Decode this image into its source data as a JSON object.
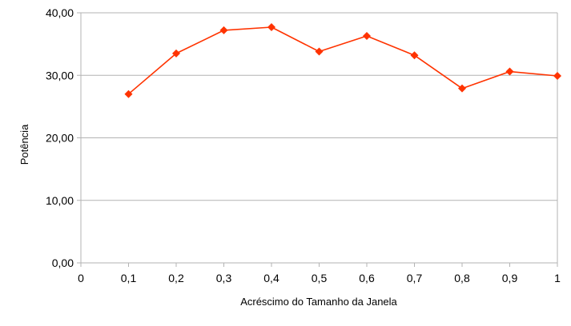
{
  "chart_data": {
    "type": "line",
    "title": "",
    "xlabel": "Acréscimo do Tamanho da Janela",
    "ylabel": "Potência",
    "xlim": [
      0,
      1
    ],
    "ylim": [
      0,
      40
    ],
    "grid": "horizontal",
    "legend": "none",
    "x_tick_labels": [
      "0",
      "0,1",
      "0,2",
      "0,3",
      "0,4",
      "0,5",
      "0,6",
      "0,7",
      "0,8",
      "0,9",
      "1"
    ],
    "y_tick_labels": [
      "0,00",
      "10,00",
      "20,00",
      "30,00",
      "40,00"
    ],
    "series": [
      {
        "color": "#ff3300",
        "marker": "diamond",
        "x": [
          0.1,
          0.2,
          0.3,
          0.4,
          0.5,
          0.6,
          0.7,
          0.8,
          0.9,
          1.0
        ],
        "y": [
          27.0,
          33.5,
          37.2,
          37.7,
          33.8,
          36.3,
          33.2,
          27.9,
          30.6,
          29.9
        ]
      }
    ]
  }
}
